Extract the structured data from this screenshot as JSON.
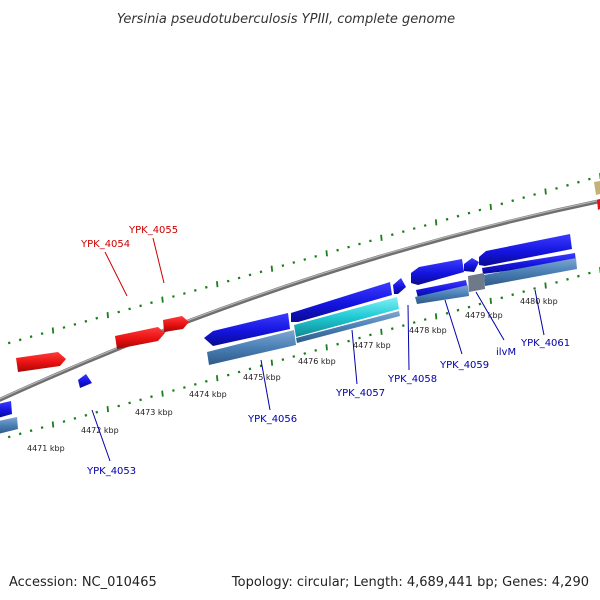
{
  "header": {
    "title": "Yersinia pseudotuberculosis YPIII, complete genome"
  },
  "footer": {
    "accession": "Accession: NC_010465",
    "summary": "Topology: circular; Length: 4,689,441 bp; Genes: 4,290"
  },
  "map": {
    "colors": {
      "reverse_strand_gene": "#e81010",
      "forward_strand_gene": "#1414e0",
      "cds_feature": "#4a7fb5",
      "cds_feature_cyan": "#1fc9d4",
      "other_feature": "#6e7a8a",
      "backbone": "#8a8a8a",
      "tick": "#1a7f1a",
      "label_reverse": "#cc0000",
      "label_forward": "#0000aa",
      "partial_feature_tan": "#c2b27a"
    },
    "ruler_labels": [
      "4471 kbp",
      "4472 kbp",
      "4473 kbp",
      "4474 kbp",
      "4475 kbp",
      "4476 kbp",
      "4477 kbp",
      "4478 kbp",
      "4479 kbp",
      "4480 kbp"
    ],
    "reverse_genes": [
      "YPK_4054",
      "YPK_4055"
    ],
    "forward_genes": [
      "YPK_4053",
      "YPK_4056",
      "YPK_4057",
      "YPK_4058",
      "YPK_4059",
      "ilvM",
      "YPK_4061"
    ]
  }
}
